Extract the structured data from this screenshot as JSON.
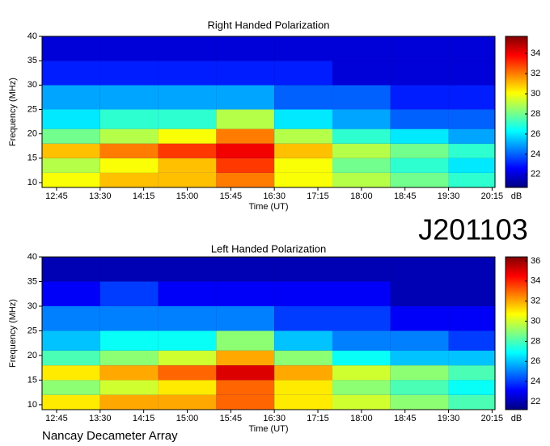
{
  "chart_data": [
    {
      "type": "heatmap",
      "title": "Right Handed Polarization",
      "x_label": "Time (UT)",
      "y_label": "Frequency (MHz)",
      "colorbar_label": "dB",
      "colormap": "jet",
      "xlim": [
        750,
        1218
      ],
      "xticks": [
        {
          "value": 765,
          "label": "12:45"
        },
        {
          "value": 810,
          "label": "13:30"
        },
        {
          "value": 855,
          "label": "14:15"
        },
        {
          "value": 900,
          "label": "15:00"
        },
        {
          "value": 945,
          "label": "15:45"
        },
        {
          "value": 990,
          "label": "16:30"
        },
        {
          "value": 1035,
          "label": "17:15"
        },
        {
          "value": 1080,
          "label": "18:00"
        },
        {
          "value": 1125,
          "label": "18:45"
        },
        {
          "value": 1170,
          "label": "19:30"
        },
        {
          "value": 1215,
          "label": "20:15"
        }
      ],
      "ylim": [
        9,
        40
      ],
      "yticks": [
        10,
        15,
        20,
        25,
        30,
        35,
        40
      ],
      "clim": [
        20.7,
        35.7
      ],
      "cticks": [
        22,
        24,
        26,
        28,
        30,
        32,
        34
      ],
      "x_edges": [
        750,
        810,
        870,
        930,
        990,
        1050,
        1110,
        1170,
        1218
      ],
      "y_edges": [
        9,
        12,
        15,
        18,
        21,
        25,
        30,
        35,
        40
      ],
      "z": [
        [
          30,
          31,
          31,
          32,
          30,
          29,
          28,
          27
        ],
        [
          29,
          30,
          31,
          33,
          30,
          28,
          27,
          26
        ],
        [
          31,
          32,
          33,
          34,
          31,
          29,
          28,
          27
        ],
        [
          28,
          29,
          30,
          32,
          29,
          27,
          26,
          25
        ],
        [
          26,
          27,
          27,
          29,
          26,
          25,
          24,
          24
        ],
        [
          25,
          25,
          25,
          25,
          24,
          24,
          23,
          23
        ],
        [
          23,
          23,
          23,
          23,
          23,
          22,
          22,
          22
        ],
        [
          22,
          22,
          22,
          22,
          22,
          22,
          22,
          22
        ]
      ]
    },
    {
      "type": "heatmap",
      "title": "Left Handed Polarization",
      "x_label": "Time (UT)",
      "y_label": "Frequency (MHz)",
      "colorbar_label": "dB",
      "colormap": "jet",
      "xlim": [
        750,
        1218
      ],
      "xticks": [
        {
          "value": 765,
          "label": "12:45"
        },
        {
          "value": 810,
          "label": "13:30"
        },
        {
          "value": 855,
          "label": "14:15"
        },
        {
          "value": 900,
          "label": "15:00"
        },
        {
          "value": 945,
          "label": "15:45"
        },
        {
          "value": 990,
          "label": "16:30"
        },
        {
          "value": 1035,
          "label": "17:15"
        },
        {
          "value": 1080,
          "label": "18:00"
        },
        {
          "value": 1125,
          "label": "18:45"
        },
        {
          "value": 1170,
          "label": "19:30"
        },
        {
          "value": 1215,
          "label": "20:15"
        }
      ],
      "ylim": [
        9,
        40
      ],
      "yticks": [
        10,
        15,
        20,
        25,
        30,
        35,
        40
      ],
      "clim": [
        21.2,
        36.4
      ],
      "cticks": [
        22,
        24,
        26,
        28,
        30,
        32,
        34,
        36
      ],
      "x_edges": [
        750,
        810,
        870,
        930,
        990,
        1050,
        1110,
        1170,
        1218
      ],
      "y_edges": [
        9,
        12,
        15,
        18,
        21,
        25,
        30,
        35,
        40
      ],
      "z": [
        [
          31,
          32,
          32,
          33,
          31,
          30,
          29,
          28
        ],
        [
          29,
          30,
          31,
          33,
          31,
          29,
          28,
          27
        ],
        [
          31,
          32,
          33,
          35,
          32,
          30,
          29,
          28
        ],
        [
          28,
          29,
          30,
          32,
          29,
          27,
          26,
          26
        ],
        [
          26,
          27,
          27,
          29,
          26,
          25,
          25,
          24
        ],
        [
          25,
          25,
          25,
          25,
          24,
          24,
          23,
          23
        ],
        [
          23,
          24,
          23,
          23,
          23,
          23,
          22,
          22
        ],
        [
          22,
          22,
          22,
          22,
          22,
          22,
          22,
          22
        ]
      ]
    }
  ],
  "label": "J201103",
  "footer": "Nancay Decameter Array"
}
